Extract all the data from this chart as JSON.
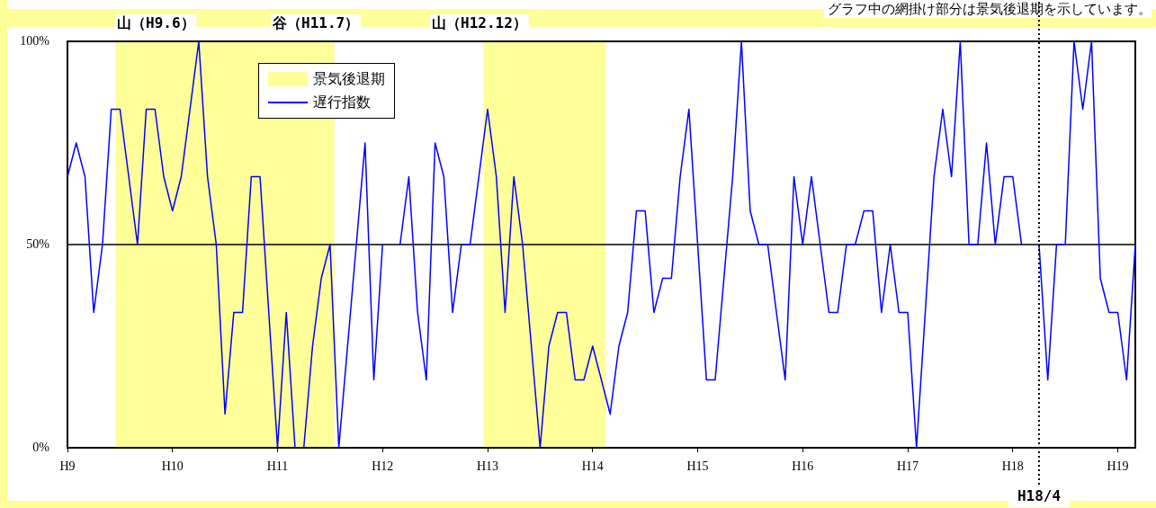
{
  "chart_data": {
    "type": "line",
    "annotations": [
      "山（H9.6）",
      "谷（H11.7）",
      "山（H12.12）",
      "グラフ中の網掛け部分は景気後退期を示しています。",
      "H18/4",
      "景気後退期"
    ],
    "categories": [
      "H9",
      null,
      null,
      null,
      null,
      null,
      null,
      null,
      null,
      null,
      null,
      null,
      "H10",
      null,
      null,
      null,
      null,
      null,
      null,
      null,
      null,
      null,
      null,
      null,
      "H11",
      null,
      null,
      null,
      null,
      null,
      null,
      null,
      null,
      null,
      null,
      null,
      "H12",
      null,
      null,
      null,
      null,
      null,
      null,
      null,
      null,
      null,
      null,
      null,
      "H13",
      null,
      null,
      null,
      null,
      null,
      null,
      null,
      null,
      null,
      null,
      null,
      "H14",
      null,
      null,
      null,
      null,
      null,
      null,
      null,
      null,
      null,
      null,
      null,
      "H15",
      null,
      null,
      null,
      null,
      null,
      null,
      null,
      null,
      null,
      null,
      null,
      "H16",
      null,
      null,
      null,
      null,
      null,
      null,
      null,
      null,
      null,
      null,
      null,
      "H17",
      null,
      null,
      null,
      null,
      null,
      null,
      null,
      null,
      null,
      null,
      null,
      "H18",
      null,
      null,
      null,
      null,
      null,
      null,
      null,
      null,
      null,
      null,
      null,
      "H19",
      null,
      null
    ],
    "series": [
      {
        "name": "遅行指数",
        "color": "#0000ff",
        "values": [
          66.7,
          75,
          66.7,
          33.3,
          50,
          83.3,
          83.3,
          66.7,
          50,
          83.3,
          83.3,
          66.7,
          58.3,
          66.7,
          83.3,
          100,
          66.7,
          50,
          8.3,
          33.3,
          33.3,
          66.7,
          66.7,
          33.3,
          0,
          33.3,
          0,
          0,
          25,
          41.7,
          50,
          0,
          25,
          50,
          75,
          16.7,
          50,
          null,
          50,
          66.7,
          33.3,
          16.7,
          75,
          66.7,
          33.3,
          50,
          50,
          66.7,
          83.3,
          66.7,
          33.3,
          66.7,
          50,
          25,
          0,
          25,
          33.3,
          33.3,
          16.7,
          16.7,
          25,
          16.7,
          8.3,
          25,
          33.3,
          58.3,
          58.3,
          33.3,
          41.7,
          41.7,
          66.7,
          83.3,
          50,
          16.7,
          16.7,
          41.7,
          66.7,
          100,
          58.3,
          50,
          50,
          33.3,
          16.7,
          66.7,
          50,
          66.7,
          50,
          33.3,
          33.3,
          50,
          50,
          58.3,
          58.3,
          33.3,
          50,
          33.3,
          33.3,
          0,
          33.3,
          66.7,
          83.3,
          66.7,
          100,
          50,
          50,
          75,
          50,
          66.7,
          66.7,
          50,
          null,
          50,
          16.7,
          50,
          50,
          100,
          83.3,
          100,
          41.7,
          33.3,
          33.3,
          16.7,
          50
        ]
      }
    ],
    "ylim": [
      0,
      100
    ],
    "yticks": [
      {
        "value": 0,
        "label": "0%"
      },
      {
        "value": 50,
        "label": "50%"
      },
      {
        "value": 100,
        "label": "100%"
      }
    ],
    "legend": "top left",
    "marker": "none",
    "line_style": "solid",
    "ref_lines": [
      {
        "axis": "y",
        "value": 50,
        "line_style": "solid",
        "color": "#000000"
      }
    ]
  }
}
